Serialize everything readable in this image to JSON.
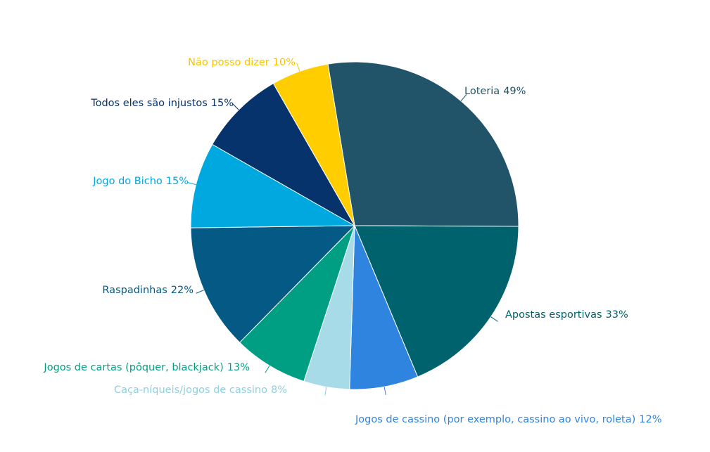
{
  "chart_data": {
    "type": "pie",
    "categories": [
      "Loteria",
      "Apostas esportivas",
      "Jogos de cassino (por exemplo, cassino ao vivo, roleta)",
      "Caça-níqueis/jogos de cassino",
      "Jogos de cartas (pôquer, blackjack)",
      "Raspadinhas",
      "Jogo do Bicho",
      "Todos eles são injustos",
      "Não posso dizer"
    ],
    "values": [
      49,
      33,
      12,
      8,
      13,
      22,
      15,
      15,
      10
    ],
    "value_labels": [
      "49%",
      "33%",
      "12%",
      "8%",
      "13%",
      "22%",
      "15%",
      "15%",
      "10%"
    ],
    "colors": [
      "#215469",
      "#00626c",
      "#2f84e0",
      "#a7dbe8",
      "#009e82",
      "#045a85",
      "#00a8e0",
      "#06336b",
      "#ffcd00"
    ]
  }
}
